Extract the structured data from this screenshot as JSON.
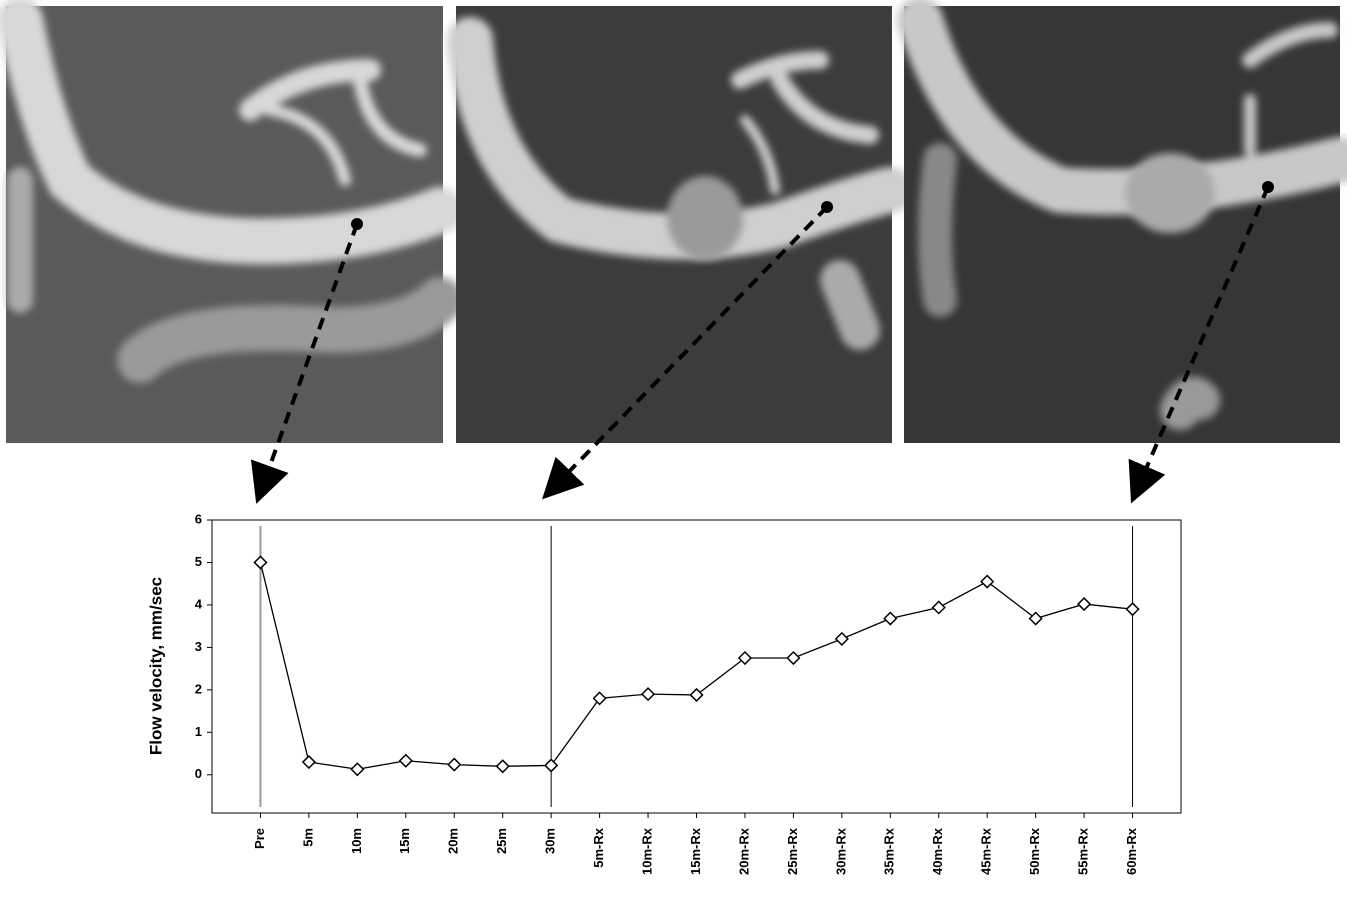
{
  "chart_data": {
    "type": "line",
    "y_label": "Flow velocity, mm/sec",
    "categories": [
      "Pre",
      "5m",
      "10m",
      "15m",
      "20m",
      "25m",
      "30m",
      "5m-Rx",
      "10m-Rx",
      "15m-Rx",
      "20m-Rx",
      "25m-Rx",
      "30m-Rx",
      "35m-Rx",
      "40m-Rx",
      "45m-Rx",
      "50m-Rx",
      "55m-Rx",
      "60m-Rx"
    ],
    "values": [
      5.0,
      0.3,
      0.13,
      0.33,
      0.24,
      0.2,
      0.22,
      1.8,
      1.9,
      1.88,
      2.75,
      2.75,
      3.2,
      3.68,
      3.94,
      4.55,
      3.68,
      4.02,
      3.9
    ],
    "color": "#000000",
    "ylim": [
      -0.9,
      6
    ],
    "yticks": [
      0,
      1,
      2,
      3,
      4,
      5,
      6
    ],
    "reference_lines": [
      "Pre",
      "30m",
      "60m-Rx"
    ]
  }
}
